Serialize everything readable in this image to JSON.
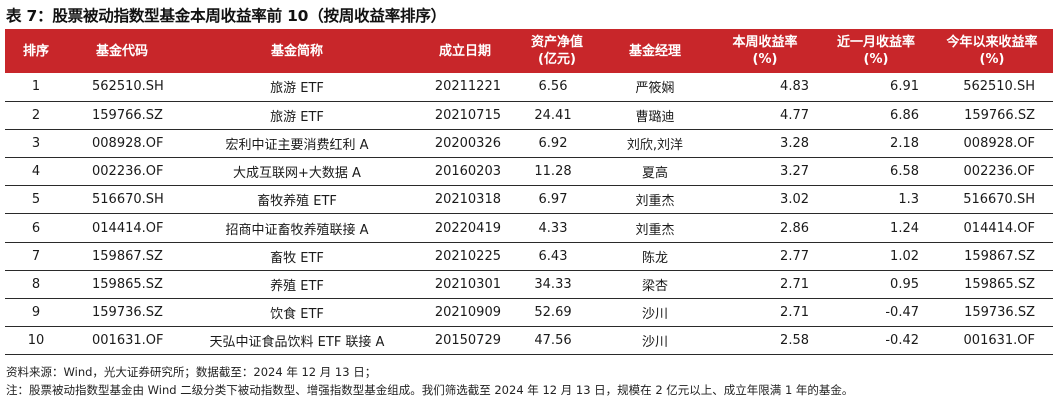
{
  "title": "表 7：股票被动指数型基金本周收益率前 10（按周收益率排序）",
  "headers": {
    "rank": "排序",
    "code": "基金代码",
    "name": "基金简称",
    "date": "成立日期",
    "nav_line1": "资产净值",
    "nav_line2": "(亿元)",
    "manager": "基金经理",
    "week_line1": "本周收益率",
    "week_line2": "(%)",
    "month_line1": "近一月收益率",
    "month_line2": "(%)",
    "ytd_line1": "今年以来收益率",
    "ytd_line2": "(%)"
  },
  "rows": [
    {
      "rank": "1",
      "code": "562510.SH",
      "name": "旅游 ETF",
      "date": "20211221",
      "nav": "6.56",
      "manager": "严筱娴",
      "week": "4.83",
      "month": "6.91",
      "ytd": "562510.SH"
    },
    {
      "rank": "2",
      "code": "159766.SZ",
      "name": "旅游 ETF",
      "date": "20210715",
      "nav": "24.41",
      "manager": "曹璐迪",
      "week": "4.77",
      "month": "6.86",
      "ytd": "159766.SZ"
    },
    {
      "rank": "3",
      "code": "008928.OF",
      "name": "宏利中证主要消费红利 A",
      "date": "20200326",
      "nav": "6.92",
      "manager": "刘欣,刘洋",
      "week": "3.28",
      "month": "2.18",
      "ytd": "008928.OF"
    },
    {
      "rank": "4",
      "code": "002236.OF",
      "name": "大成互联网+大数据 A",
      "date": "20160203",
      "nav": "11.28",
      "manager": "夏高",
      "week": "3.27",
      "month": "6.58",
      "ytd": "002236.OF"
    },
    {
      "rank": "5",
      "code": "516670.SH",
      "name": "畜牧养殖 ETF",
      "date": "20210318",
      "nav": "6.97",
      "manager": "刘重杰",
      "week": "3.02",
      "month": "1.3",
      "ytd": "516670.SH"
    },
    {
      "rank": "6",
      "code": "014414.OF",
      "name": "招商中证畜牧养殖联接 A",
      "date": "20220419",
      "nav": "4.33",
      "manager": "刘重杰",
      "week": "2.86",
      "month": "1.24",
      "ytd": "014414.OF"
    },
    {
      "rank": "7",
      "code": "159867.SZ",
      "name": "畜牧 ETF",
      "date": "20210225",
      "nav": "6.43",
      "manager": "陈龙",
      "week": "2.77",
      "month": "1.02",
      "ytd": "159867.SZ"
    },
    {
      "rank": "8",
      "code": "159865.SZ",
      "name": "养殖 ETF",
      "date": "20210301",
      "nav": "34.33",
      "manager": "梁杏",
      "week": "2.71",
      "month": "0.95",
      "ytd": "159865.SZ"
    },
    {
      "rank": "9",
      "code": "159736.SZ",
      "name": "饮食 ETF",
      "date": "20210909",
      "nav": "52.69",
      "manager": "沙川",
      "week": "2.71",
      "month": "-0.47",
      "ytd": "159736.SZ"
    },
    {
      "rank": "10",
      "code": "001631.OF",
      "name": "天弘中证食品饮料 ETF 联接 A",
      "date": "20150729",
      "nav": "47.56",
      "manager": "沙川",
      "week": "2.58",
      "month": "-0.42",
      "ytd": "001631.OF"
    }
  ],
  "source": "资料来源：Wind，光大证券研究所；数据截至：2024 年 12 月 13 日；",
  "note": "注：股票被动指数型基金由 Wind 二级分类下被动指数型、增强指数型基金组成。我们筛选截至 2024 年 12 月 13 日，规模在 2 亿元以上、成立年限满 1 年的基金。",
  "colors": {
    "header_bg": "#c8262a",
    "header_text": "#ffffff",
    "row_border": "#2a2a2a"
  }
}
